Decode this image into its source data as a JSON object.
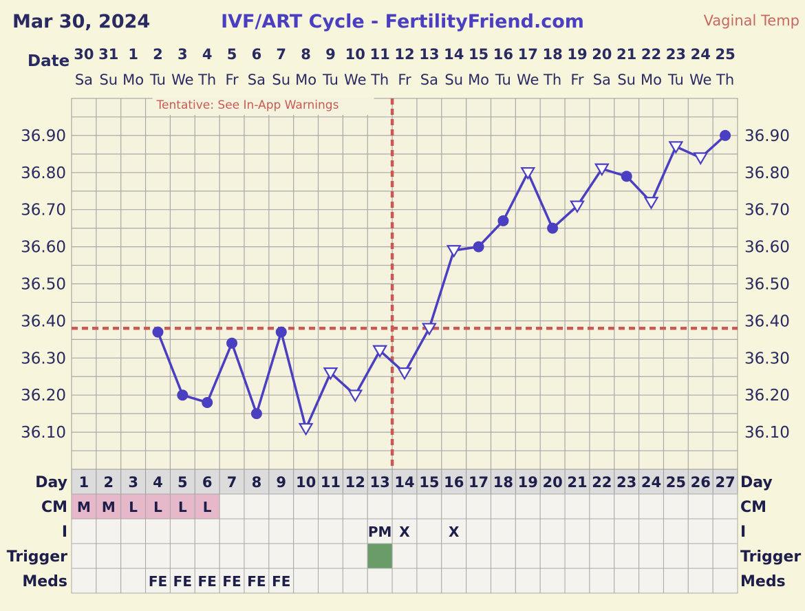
{
  "header": {
    "date": "Mar 30, 2024",
    "title": "IVF/ART Cycle - FertilityFriend.com",
    "temp_type": "Vaginal Temp"
  },
  "colors": {
    "background": "#f7f5dc",
    "grid_area": "#f5f3dd",
    "line": "#4a3fc0",
    "coverline": "#c85a55",
    "cm_fill": "#e7b8c9",
    "trigger_fill": "#6a9c6a",
    "table_fill": "#f4f3ee"
  },
  "chart_data": {
    "type": "line",
    "title": "IVF/ART Cycle - FertilityFriend.com",
    "ylabel": "Vaginal Temp",
    "ylim": [
      36.0,
      37.0
    ],
    "y_ticks": [
      "36.10",
      "36.20",
      "36.30",
      "36.40",
      "36.50",
      "36.60",
      "36.70",
      "36.80",
      "36.90"
    ],
    "annotation": "Tentative: See In-App Warnings",
    "coverline_temp": 36.38,
    "ovulation_day": 14,
    "date_label": "Date",
    "dates": [
      "30",
      "31",
      "1",
      "2",
      "3",
      "4",
      "5",
      "6",
      "7",
      "8",
      "9",
      "10",
      "11",
      "12",
      "13",
      "14",
      "15",
      "16",
      "17",
      "18",
      "19",
      "20",
      "21",
      "22",
      "23",
      "24",
      "25"
    ],
    "weekdays": [
      "Sa",
      "Su",
      "Mo",
      "Tu",
      "We",
      "Th",
      "Fr",
      "Sa",
      "Su",
      "Mo",
      "Tu",
      "We",
      "Th",
      "Fr",
      "Sa",
      "Su",
      "Mo",
      "Tu",
      "We",
      "Th",
      "Fr",
      "Sa",
      "Su",
      "Mo",
      "Tu",
      "We",
      "Th"
    ],
    "day_label": "Day",
    "days": [
      "1",
      "2",
      "3",
      "4",
      "5",
      "6",
      "7",
      "8",
      "9",
      "10",
      "11",
      "12",
      "13",
      "14",
      "15",
      "16",
      "17",
      "18",
      "19",
      "20",
      "21",
      "22",
      "23",
      "24",
      "25",
      "26",
      "27"
    ],
    "series": [
      {
        "name": "Temperature",
        "points": [
          {
            "day": 4,
            "temp": 36.37,
            "marker": "circle"
          },
          {
            "day": 5,
            "temp": 36.2,
            "marker": "circle"
          },
          {
            "day": 6,
            "temp": 36.18,
            "marker": "circle"
          },
          {
            "day": 7,
            "temp": 36.34,
            "marker": "circle"
          },
          {
            "day": 8,
            "temp": 36.15,
            "marker": "circle"
          },
          {
            "day": 9,
            "temp": 36.37,
            "marker": "circle"
          },
          {
            "day": 10,
            "temp": 36.11,
            "marker": "tri-down"
          },
          {
            "day": 11,
            "temp": 36.26,
            "marker": "tri-down"
          },
          {
            "day": 12,
            "temp": 36.2,
            "marker": "tri-down"
          },
          {
            "day": 13,
            "temp": 36.32,
            "marker": "tri-down"
          },
          {
            "day": 14,
            "temp": 36.26,
            "marker": "tri-down"
          },
          {
            "day": 15,
            "temp": 36.38,
            "marker": "tri-down"
          },
          {
            "day": 16,
            "temp": 36.59,
            "marker": "tri-down"
          },
          {
            "day": 17,
            "temp": 36.6,
            "marker": "circle"
          },
          {
            "day": 18,
            "temp": 36.67,
            "marker": "circle"
          },
          {
            "day": 19,
            "temp": 36.8,
            "marker": "tri-down"
          },
          {
            "day": 20,
            "temp": 36.65,
            "marker": "circle"
          },
          {
            "day": 21,
            "temp": 36.71,
            "marker": "tri-down"
          },
          {
            "day": 22,
            "temp": 36.81,
            "marker": "tri-down"
          },
          {
            "day": 23,
            "temp": 36.79,
            "marker": "circle"
          },
          {
            "day": 24,
            "temp": 36.72,
            "marker": "tri-down"
          },
          {
            "day": 25,
            "temp": 36.87,
            "marker": "tri-down"
          },
          {
            "day": 26,
            "temp": 36.84,
            "marker": "tri-down"
          },
          {
            "day": 27,
            "temp": 36.9,
            "marker": "circle"
          }
        ]
      }
    ],
    "rows": [
      {
        "label": "CM",
        "values": [
          "M",
          "M",
          "L",
          "L",
          "L",
          "L",
          "",
          "",
          "",
          "",
          "",
          "",
          "",
          "",
          "",
          "",
          "",
          "",
          "",
          "",
          "",
          "",
          "",
          "",
          "",
          "",
          ""
        ]
      },
      {
        "label": "I",
        "values": [
          "",
          "",
          "",
          "",
          "",
          "",
          "",
          "",
          "",
          "",
          "",
          "",
          "PM",
          "X",
          "",
          "X",
          "",
          "",
          "",
          "",
          "",
          "",
          "",
          "",
          "",
          "",
          ""
        ]
      },
      {
        "label": "Trigger",
        "values": [
          "",
          "",
          "",
          "",
          "",
          "",
          "",
          "",
          "",
          "",
          "",
          "",
          "",
          "",
          "",
          "",
          "",
          "",
          "",
          "",
          "",
          "",
          "",
          "",
          "",
          "",
          ""
        ],
        "filled_days": [
          13
        ]
      },
      {
        "label": "Meds",
        "values": [
          "",
          "",
          "",
          "FE",
          "FE",
          "FE",
          "FE",
          "FE",
          "FE",
          "",
          "",
          "",
          "",
          "",
          "",
          "",
          "",
          "",
          "",
          "",
          "",
          "",
          "",
          "",
          "",
          "",
          ""
        ]
      }
    ]
  }
}
